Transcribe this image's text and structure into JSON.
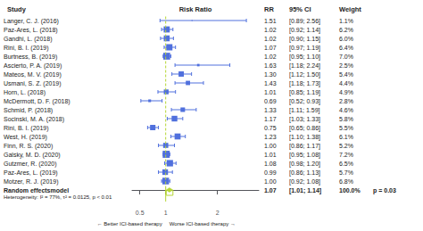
{
  "chart_data": {
    "type": "forest",
    "column_headers": [
      "Study",
      "Risk Ratio",
      "RR",
      "95% CI",
      "Weight"
    ],
    "categories": [
      "Langer, C. J. (2016)",
      "Paz-Ares, L. (2018)",
      "Gandhi, L. (2018)",
      "Rini, B. I. (2019)",
      "Burtness, B. (2019)",
      "Ascierto, P. A. (2019)",
      "Mateos, M. V. (2019)",
      "Usmani, S. Z. (2019)",
      "Horn, L. (2018)",
      "McDermott, D. F. (2018)",
      "Schmid, P. (2018)",
      "Socinski, M. A. (2018)",
      "Rini, B. I. (2019)",
      "West, H. (2019)",
      "Finn, R. S. (2020)",
      "Galsky, M. D. (2020)",
      "Gutzmer, R. (2020)",
      "Paz-Ares, L. (2019)",
      "Motzer, R. J. (2019)"
    ],
    "values": [
      1.51,
      1.02,
      1.02,
      1.07,
      1.02,
      1.63,
      1.3,
      1.43,
      1.01,
      0.69,
      1.33,
      1.17,
      0.75,
      1.23,
      1.0,
      1.01,
      1.08,
      0.99,
      1.0
    ],
    "value_labels": [
      "1.51",
      "1.02",
      "1.02",
      "1.07",
      "1.02",
      "1.63",
      "1.30",
      "1.43",
      "1.01",
      "0.69",
      "1.33",
      "1.17",
      "0.75",
      "1.23",
      "1.00",
      "1.01",
      "1.08",
      "0.99",
      "1.00"
    ],
    "ci_low": [
      0.89,
      0.92,
      0.9,
      0.97,
      0.95,
      1.18,
      1.12,
      1.18,
      0.85,
      0.52,
      1.11,
      1.03,
      0.65,
      1.1,
      0.86,
      0.95,
      0.98,
      0.86,
      0.92
    ],
    "ci_high": [
      2.56,
      1.14,
      1.15,
      1.19,
      1.1,
      2.24,
      1.5,
      1.73,
      1.19,
      0.93,
      1.59,
      1.33,
      0.86,
      1.38,
      1.17,
      1.08,
      1.2,
      1.13,
      1.08
    ],
    "ci_labels": [
      "[0.89; 2.56]",
      "[0.92; 1.14]",
      "[0.90; 1.15]",
      "[0.97; 1.19]",
      "[0.95; 1.10]",
      "[1.18; 2.24]",
      "[1.12; 1.50]",
      "[1.18; 1.73]",
      "[0.85; 1.19]",
      "[0.52; 0.93]",
      "[1.11; 1.59]",
      "[1.03; 1.33]",
      "[0.65; 0.86]",
      "[1.10; 1.38]",
      "[0.86; 1.17]",
      "[0.95; 1.08]",
      "[0.98; 1.20]",
      "[0.86; 1.13]",
      "[0.92; 1.08]"
    ],
    "weights": [
      1.1,
      6.2,
      6.0,
      6.4,
      7.0,
      2.5,
      5.4,
      4.4,
      4.9,
      2.8,
      4.6,
      5.8,
      5.5,
      6.1,
      5.2,
      7.2,
      6.5,
      5.7,
      6.8
    ],
    "weight_labels": [
      "1.1%",
      "6.2%",
      "6.0%",
      "6.4%",
      "7.0%",
      "2.5%",
      "5.4%",
      "4.4%",
      "4.9%",
      "2.8%",
      "4.6%",
      "5.8%",
      "5.5%",
      "6.1%",
      "5.2%",
      "7.2%",
      "6.5%",
      "5.7%",
      "6.8%"
    ],
    "pooled": {
      "name": "Random effectsmodel",
      "value": 1.07,
      "value_label": "1.07",
      "ci_low": 1.01,
      "ci_high": 1.14,
      "ci_label": "[1.01; 1.14]",
      "weight_label": "100.0%",
      "p_label": "p = 0.03"
    },
    "heterogeneity": "Heterogeneity: I² = 77%, τ² = 0.0125, p < 0.01",
    "x_label_left": "← Better ICI-based therapy",
    "x_label_right": "Worse ICI-based therapy →",
    "xlim": [
      0.35,
      2.8
    ],
    "xticks": [
      0.5,
      1,
      2
    ],
    "reference_line": 1,
    "grid": false
  }
}
